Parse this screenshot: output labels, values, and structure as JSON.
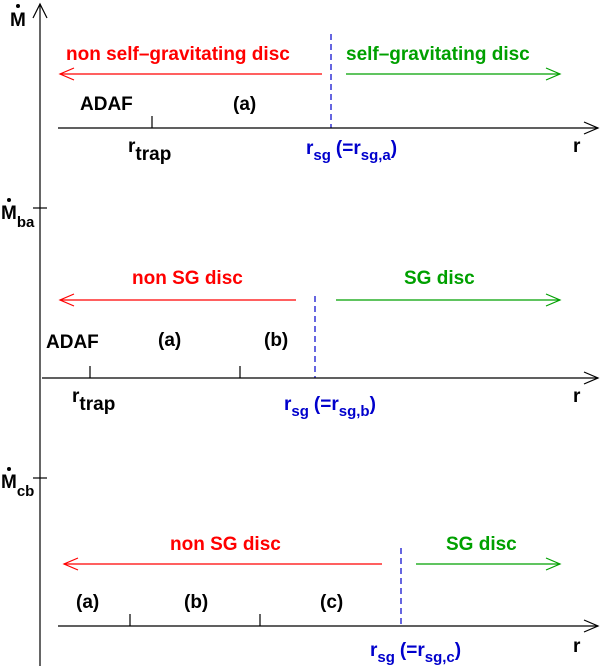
{
  "colors": {
    "red": "#ff0000",
    "green": "#00a000",
    "blue": "#0000cc",
    "black": "#000000"
  },
  "vertical_axis": {
    "top_label": {
      "main": "M"
    },
    "ticks": [
      {
        "main": "M",
        "sub": "ba"
      },
      {
        "main": "M",
        "sub": "cb"
      }
    ]
  },
  "panels": [
    {
      "red_label": "non self–gravitating disc",
      "green_label": "self–gravitating disc",
      "regions": [
        "ADAF",
        "(a)"
      ],
      "r_trap": {
        "main": "r",
        "sub": "trap"
      },
      "r_sg": {
        "main": "r",
        "sub": "sg",
        "paren": "(=r",
        "paren_sub": "sg,a",
        "close": ")"
      },
      "r_axis": "r"
    },
    {
      "red_label": "non SG disc",
      "green_label": "SG disc",
      "regions": [
        "ADAF",
        "(a)",
        "(b)"
      ],
      "r_trap": {
        "main": "r",
        "sub": "trap"
      },
      "r_sg": {
        "main": "r",
        "sub": "sg",
        "paren": "(=r",
        "paren_sub": "sg,b",
        "close": ")"
      },
      "r_axis": "r"
    },
    {
      "red_label": "non SG disc",
      "green_label": "SG disc",
      "regions": [
        "(a)",
        "(b)",
        "(c)"
      ],
      "r_sg": {
        "main": "r",
        "sub": "sg",
        "paren": "(=r",
        "paren_sub": "sg,c",
        "close": ")"
      },
      "r_axis": "r"
    }
  ]
}
